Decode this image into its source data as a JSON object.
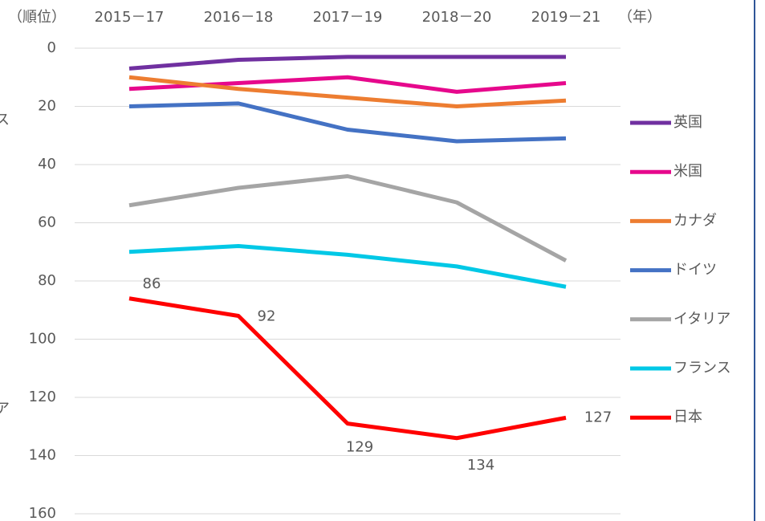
{
  "chart_data": {
    "type": "line",
    "y_label": "（順位）",
    "x_label": "（年）",
    "annotations": [
      "ス",
      "ア"
    ],
    "categories": [
      "2015－17",
      "2016－18",
      "2017－19",
      "2018－20",
      "2019－21"
    ],
    "series": [
      {
        "name": "英国",
        "color": "#7030a0",
        "values": [
          7,
          4,
          3,
          3,
          3
        ]
      },
      {
        "name": "米国",
        "color": "#e6088c",
        "values": [
          14,
          12,
          10,
          15,
          12
        ]
      },
      {
        "name": "カナダ",
        "color": "#ed7d31",
        "values": [
          10,
          14,
          17,
          20,
          18
        ]
      },
      {
        "name": "ドイツ",
        "color": "#4472c4",
        "values": [
          20,
          19,
          28,
          32,
          31
        ]
      },
      {
        "name": "イタリア",
        "color": "#a5a5a5",
        "values": [
          54,
          48,
          44,
          53,
          73
        ]
      },
      {
        "name": "フランス",
        "color": "#00c8e6",
        "values": [
          70,
          68,
          71,
          75,
          82
        ]
      },
      {
        "name": "日本",
        "color": "#ff0000",
        "values": [
          86,
          92,
          129,
          134,
          127
        ],
        "data_labels": true
      }
    ],
    "ylim": [
      0,
      160
    ],
    "y_inverted": true,
    "yticks": [
      0,
      20,
      40,
      60,
      80,
      100,
      120,
      140,
      160
    ],
    "grid": true,
    "legend": "right"
  }
}
